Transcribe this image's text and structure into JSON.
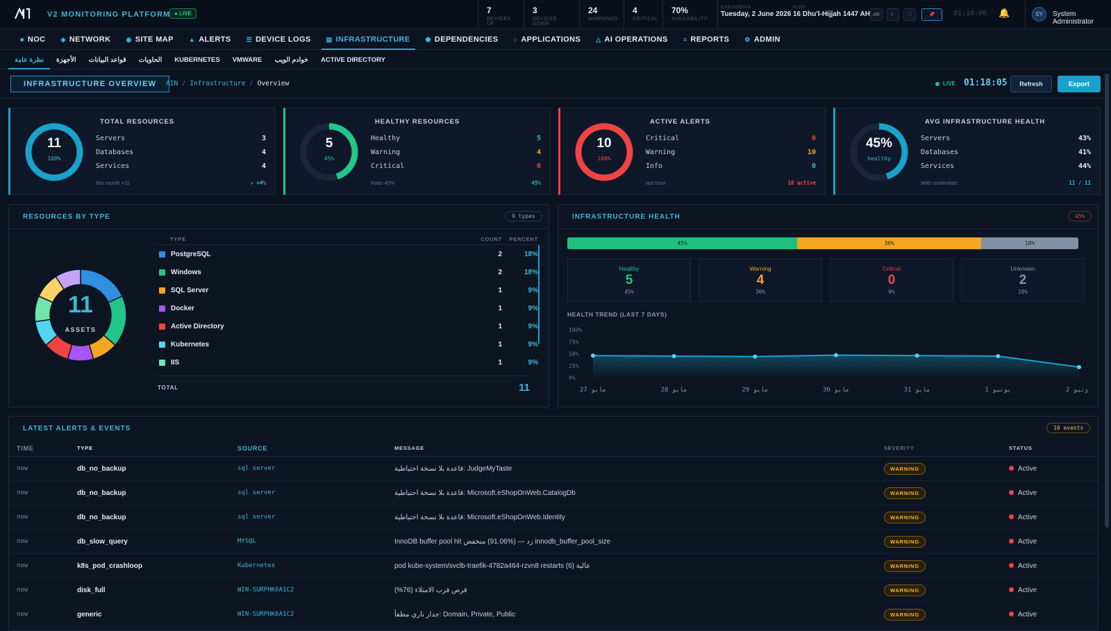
{
  "topbar": {
    "platform": "V2 MONITORING PLATFORM",
    "live": "● LIVE",
    "stats": [
      {
        "value": "7",
        "label": "DEVICES UP"
      },
      {
        "value": "3",
        "label": "DEVICES DOWN"
      },
      {
        "value": "24",
        "label": "WARNINGS"
      },
      {
        "value": "4",
        "label": "CRITICAL"
      },
      {
        "value": "70%",
        "label": "AVAILABILITY"
      }
    ],
    "gregorian_label": "GREGORIAN",
    "gregorian_date": "Tuesday, 2 June 2026",
    "hijri_label": "HIJRI",
    "hijri_date": "16 Dhu'l-Hijjah 1447 AH",
    "lang_button": "AR",
    "clock": "01:18:06",
    "user_initials": "SY",
    "user_name": "System Administrator"
  },
  "nav": [
    {
      "icon": "■",
      "label": "NOC"
    },
    {
      "icon": "◆",
      "label": "NETWORK"
    },
    {
      "icon": "◉",
      "label": "SITE MAP"
    },
    {
      "icon": "▲",
      "label": "ALERTS"
    },
    {
      "icon": "☰",
      "label": "DEVICE LOGS"
    },
    {
      "icon": "▤",
      "label": "INFRASTRUCTURE"
    },
    {
      "icon": "⬟",
      "label": "DEPENDENCIES"
    },
    {
      "icon": "○",
      "label": "APPLICATIONS"
    },
    {
      "icon": "△",
      "label": "AI OPERATIONS"
    },
    {
      "icon": "≡",
      "label": "REPORTS"
    },
    {
      "icon": "⚙",
      "label": "ADMIN"
    }
  ],
  "subnav": [
    "نظرة عامة",
    "الأجهزة",
    "قواعد البيانات",
    "الحاويات",
    "KUBERNETES",
    "VMWARE",
    "خوادم الويب",
    "ACTIVE DIRECTORY"
  ],
  "header": {
    "title": "INFRASTRUCTURE OVERVIEW",
    "crumbs": [
      "AIN",
      "Infrastructure",
      "Overview"
    ],
    "live": "LIVE",
    "clock": "01:18:05",
    "refresh": "Refresh",
    "export": "Export"
  },
  "kpis": [
    {
      "title": "TOTAL RESOURCES",
      "ring_value": "11",
      "ring_sub": "100%",
      "ring_fraction": 1.0,
      "color": "#1aa2cc",
      "rows": [
        {
          "label": "Servers",
          "value": "3",
          "color": "#e6ecf5"
        },
        {
          "label": "Databases",
          "value": "4",
          "color": "#e6ecf5"
        },
        {
          "label": "Services",
          "value": "4",
          "color": "#e6ecf5"
        }
      ],
      "foot_left": "this month +11",
      "foot_right": "↗ +4%",
      "foot_right_color": "#3fb6d8",
      "sub_color": "#3fb6d8"
    },
    {
      "title": "HEALTHY RESOURCES",
      "ring_value": "5",
      "ring_sub": "45%",
      "ring_fraction": 0.45,
      "color": "#22c58a",
      "rows": [
        {
          "label": "Healthy",
          "value": "5",
          "color": "#22c58a"
        },
        {
          "label": "Warning",
          "value": "4",
          "color": "#f5a623"
        },
        {
          "label": "Critical",
          "value": "0",
          "color": "#ef4444"
        }
      ],
      "foot_left": "Ratio 45%",
      "foot_right": "45%",
      "foot_right_color": "#22c58a",
      "sub_color": "#22c58a"
    },
    {
      "title": "ACTIVE ALERTS",
      "ring_value": "10",
      "ring_sub": "100%",
      "ring_fraction": 1.0,
      "color": "#ef4444",
      "rows": [
        {
          "label": "Critical",
          "value": "0",
          "color": "#ef4444"
        },
        {
          "label": "Warning",
          "value": "10",
          "color": "#f5a623"
        },
        {
          "label": "Info",
          "value": "0",
          "color": "#3fb6d8"
        }
      ],
      "foot_left": "last hour",
      "foot_right": "10 active",
      "foot_right_color": "#ef4444",
      "sub_color": "#ef4444"
    },
    {
      "title": "AVG INFRASTRUCTURE HEALTH",
      "ring_value": "45%",
      "ring_sub": "healthy",
      "ring_fraction": 0.45,
      "color": "#1aa2cc",
      "rows": [
        {
          "label": "Servers",
          "value": "43%",
          "color": "#e6ecf5"
        },
        {
          "label": "Databases",
          "value": "41%",
          "color": "#e6ecf5"
        },
        {
          "label": "Services",
          "value": "44%",
          "color": "#e6ecf5"
        }
      ],
      "foot_left": "With credentials",
      "foot_right": "11 / 11",
      "foot_right_color": "#3fb6d8",
      "sub_color": "#3fb6d8"
    }
  ],
  "resources": {
    "title": "RESOURCES BY TYPE",
    "badge": "9 types",
    "center_value": "11",
    "center_label": "ASSETS",
    "headers": {
      "type": "TYPE",
      "count": "COUNT",
      "percent": "PERCENT"
    },
    "rows": [
      {
        "name": "PostgreSQL",
        "count": "2",
        "percent": "18%",
        "color": "#2f8fe0"
      },
      {
        "name": "Windows",
        "count": "2",
        "percent": "18%",
        "color": "#22c58a"
      },
      {
        "name": "SQL Server",
        "count": "1",
        "percent": "9%",
        "color": "#f5a623"
      },
      {
        "name": "Docker",
        "count": "1",
        "percent": "9%",
        "color": "#a855f7"
      },
      {
        "name": "Active Directory",
        "count": "1",
        "percent": "9%",
        "color": "#ef4444"
      },
      {
        "name": "Kubernetes",
        "count": "1",
        "percent": "9%",
        "color": "#53d5f0"
      },
      {
        "name": "IIS",
        "count": "1",
        "percent": "9%",
        "color": "#6ee7a8"
      }
    ],
    "total_label": "TOTAL",
    "total_value": "11"
  },
  "health": {
    "title": "INFRASTRUCTURE HEALTH",
    "badge": "45%",
    "bar": [
      {
        "label": "45%",
        "value": 45,
        "color": "#1fc07f"
      },
      {
        "label": "36%",
        "value": 36,
        "color": "#f5a623"
      },
      {
        "label": "18%",
        "value": 18,
        "color": "#8390a4"
      }
    ],
    "cards": [
      {
        "label": "Healthy",
        "value": "5",
        "pct": "45%",
        "color": "#22c58a"
      },
      {
        "label": "Warning",
        "value": "4",
        "pct": "36%",
        "color": "#f5a623"
      },
      {
        "label": "Critical",
        "value": "0",
        "pct": "0%",
        "color": "#ef4444"
      },
      {
        "label": "Unknown",
        "value": "2",
        "pct": "18%",
        "color": "#8592a6"
      }
    ],
    "trend_title": "HEALTH TREND (LAST 7 DAYS)"
  },
  "chart_data": {
    "type": "area",
    "title": "HEALTH TREND (LAST 7 DAYS)",
    "x": [
      "27 مايو",
      "28 مايو",
      "29 مايو",
      "30 مايو",
      "31 مايو",
      "1 يونيو",
      "2 يونيو"
    ],
    "y": [
      46,
      45,
      44,
      47,
      46,
      45,
      22
    ],
    "yticks": [
      "100%",
      "75%",
      "50%",
      "25%",
      "0%"
    ],
    "ylim": [
      0,
      100
    ],
    "grid": false,
    "color": "#1aa2cc"
  },
  "alerts": {
    "title": "LATEST ALERTS & EVENTS",
    "badge": "10 events",
    "headers": [
      "TIME",
      "TYPE",
      "SOURCE",
      "MESSAGE",
      "SEVERITY",
      "STATUS"
    ],
    "rows": [
      {
        "time": "now",
        "type": "db_no_backup",
        "source": "sql server",
        "message": "قاعدة بلا نسخة احتياطية: JudgeMyTaste",
        "severity": "WARNING",
        "status": "Active"
      },
      {
        "time": "now",
        "type": "db_no_backup",
        "source": "sql server",
        "message": "قاعدة بلا نسخة احتياطية: Microsoft.eShopOnWeb.CatalogDb",
        "severity": "WARNING",
        "status": "Active"
      },
      {
        "time": "now",
        "type": "db_no_backup",
        "source": "sql server",
        "message": "قاعدة بلا نسخة احتياطية: Microsoft.eShopOnWeb.Identity",
        "severity": "WARNING",
        "status": "Active"
      },
      {
        "time": "now",
        "type": "db_slow_query",
        "source": "MYSQL",
        "message": "InnoDB buffer pool hit زد — (%91.06) منخفض innodb_buffer_pool_size",
        "severity": "WARNING",
        "status": "Active"
      },
      {
        "time": "now",
        "type": "k8s_pod_crashloop",
        "source": "Kubernetes",
        "message": "pod kube-system/svclb-traefik-4782a464-rzvn8 restarts (6) عالية",
        "severity": "WARNING",
        "status": "Active"
      },
      {
        "time": "now",
        "type": "disk_full",
        "source": "WIN-SURPHK6A1C2",
        "message": "(%76) قرص قرب الامتلاء",
        "severity": "WARNING",
        "status": "Active"
      },
      {
        "time": "now",
        "type": "generic",
        "source": "WIN-SURPHK6A1C2",
        "message": "جدار ناري مطفأ: Domain, Private, Public",
        "severity": "WARNING",
        "status": "Active"
      }
    ]
  }
}
